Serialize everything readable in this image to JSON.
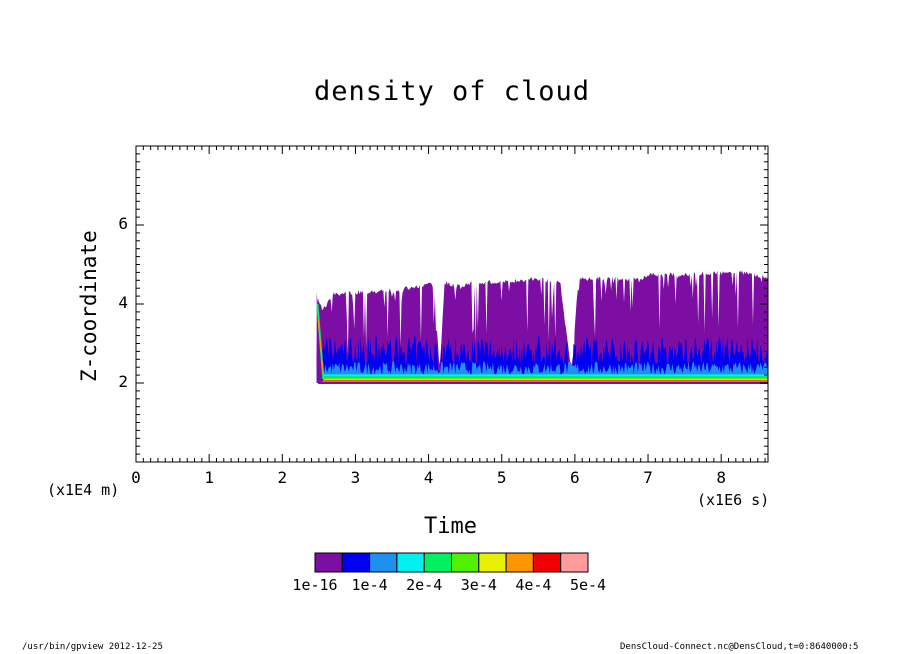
{
  "chart_data": {
    "type": "heatmap",
    "title": "density of cloud",
    "xlabel": "Time",
    "ylabel": "Z-coordinate",
    "x_unit": "(x1E6 s)",
    "y_unit": "(x1E4 m)",
    "xlim": [
      0,
      8.64
    ],
    "ylim": [
      0,
      8
    ],
    "x_ticks": [
      "0",
      "1",
      "2",
      "3",
      "4",
      "5",
      "6",
      "7",
      "8"
    ],
    "y_ticks": [
      "2",
      "4",
      "6"
    ],
    "data_start_x": 2.47,
    "cloud_base_z": 2.0,
    "cloud_top_z": [
      [
        2.47,
        4.3
      ],
      [
        2.55,
        3.9
      ],
      [
        2.7,
        4.3
      ],
      [
        3.0,
        4.35
      ],
      [
        3.4,
        4.4
      ],
      [
        3.6,
        4.4
      ],
      [
        3.8,
        4.5
      ],
      [
        4.0,
        4.55
      ],
      [
        4.08,
        4.5
      ],
      [
        4.15,
        2.3
      ],
      [
        4.22,
        4.6
      ],
      [
        4.4,
        4.5
      ],
      [
        4.6,
        4.6
      ],
      [
        4.9,
        4.6
      ],
      [
        5.2,
        4.65
      ],
      [
        5.5,
        4.7
      ],
      [
        5.8,
        4.6
      ],
      [
        5.95,
        2.3
      ],
      [
        6.05,
        4.7
      ],
      [
        6.5,
        4.7
      ],
      [
        6.9,
        4.7
      ],
      [
        7.05,
        4.8
      ],
      [
        7.5,
        4.8
      ],
      [
        8.0,
        4.85
      ],
      [
        8.4,
        4.85
      ],
      [
        8.64,
        4.7
      ]
    ],
    "colorbar": {
      "labels": [
        "1e-16",
        "1e-4",
        "2e-4",
        "3e-4",
        "4e-4",
        "5e-4"
      ],
      "colors": [
        "#7d0ea4",
        "#0000f0",
        "#1e90f0",
        "#00f0f0",
        "#00f060",
        "#50f000",
        "#e6f000",
        "#ff9600",
        "#f00000",
        "#ff9b9b"
      ]
    }
  },
  "footer": {
    "left": "/usr/bin/gpview   2012-12-25",
    "right": "DensCloud-Connect.nc@DensCloud,t=0:8640000:5"
  }
}
